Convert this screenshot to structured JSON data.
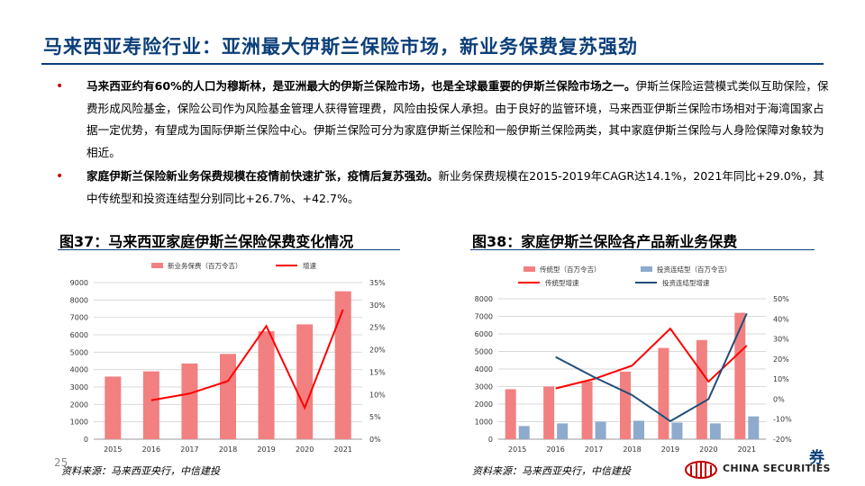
{
  "title": "马来西亚寿险行业：亚洲最大伊斯兰保险市场，新业务保费复苏强劲",
  "bullets": [
    {
      "bold": "马来西亚约有60%的人口为穆斯林，是亚洲最大的伊斯兰保险市场，也是全球最重要的伊斯兰保险市场之一。",
      "text": "伊斯兰保险运营模式类似互助保险，保费形成风险基金，保险公司作为风险基金管理人获得管理费，风险由投保人承担。由于良好的监管环境，马来西亚伊斯兰保险市场相对于海湾国家占据一定优势，有望成为国际伊斯兰保险中心。伊斯兰保险可分为家庭伊斯兰保险和一般伊斯兰保险两类，其中家庭伊斯兰保险与人身险保障对象较为相近。"
    },
    {
      "bold": "家庭伊斯兰保险新业务保费规模在疫情前快速扩张，疫情后复苏强劲。",
      "text": "新业务保费规模在2015-2019年CAGR达14.1%，2021年同比+29.0%，其中传统型和投资连结型分别同比+26.7%、+42.7%。"
    }
  ],
  "fig1": {
    "title": "图37：马来西亚家庭伊斯兰保险保费变化情况",
    "source": "资料来源：马来西亚央行，中信建投"
  },
  "fig2": {
    "title": "图38：家庭伊斯兰保险各产品新业务保费",
    "source": "资料来源：马来西亚央行，中信建投"
  },
  "page_number": "25",
  "logo": {
    "text": "CHINA SECURITIES",
    "char": "券"
  },
  "colors": {
    "bar_red": "#f28080",
    "line_red": "#ff0000",
    "bar_blue": "#8eaacc",
    "line_blue": "#1f4e79",
    "title_blue": "#0b3f7a"
  },
  "chart_data": [
    {
      "type": "bar",
      "categories": [
        "2015",
        "2016",
        "2017",
        "2018",
        "2019",
        "2020",
        "2021"
      ],
      "series": [
        {
          "name": "新业务保费（百万令吉）",
          "kind": "bar",
          "axis": "left",
          "values": [
            3600,
            3900,
            4350,
            4900,
            6200,
            6600,
            8500
          ]
        },
        {
          "name": "增速",
          "kind": "line",
          "axis": "right",
          "values": [
            null,
            8.7,
            10.2,
            13.0,
            25.3,
            7.0,
            29.0
          ]
        }
      ],
      "left_ticks": [
        "0",
        "1000",
        "2000",
        "3000",
        "4000",
        "5000",
        "6000",
        "7000",
        "8000",
        "9000"
      ],
      "right_ticks": [
        "0%",
        "5%",
        "10%",
        "15%",
        "20%",
        "25%",
        "30%",
        "35%"
      ],
      "ylim_left": [
        0,
        9000
      ],
      "ylim_right": [
        0,
        35
      ],
      "legend": "top"
    },
    {
      "type": "bar",
      "categories": [
        "2015",
        "2016",
        "2017",
        "2018",
        "2019",
        "2020",
        "2021"
      ],
      "series": [
        {
          "name": "传统型（百万令吉）",
          "kind": "bar",
          "axis": "left",
          "values": [
            2850,
            3000,
            3300,
            3850,
            5200,
            5650,
            7200
          ]
        },
        {
          "name": "投资连结型（百万令吉）",
          "kind": "bar",
          "axis": "left",
          "values": [
            750,
            900,
            1000,
            1050,
            950,
            900,
            1300
          ]
        },
        {
          "name": "传统型增速",
          "kind": "line",
          "axis": "right",
          "values": [
            null,
            5.3,
            10.0,
            16.7,
            35.1,
            8.7,
            26.7
          ]
        },
        {
          "name": "投资连结型增速",
          "kind": "line",
          "axis": "right",
          "values": [
            null,
            21.0,
            11.0,
            2.0,
            -11.0,
            0.0,
            42.7
          ]
        }
      ],
      "left_ticks": [
        "0",
        "1000",
        "2000",
        "3000",
        "4000",
        "5000",
        "6000",
        "7000",
        "8000"
      ],
      "right_ticks": [
        "-20%",
        "-10%",
        "0%",
        "10%",
        "20%",
        "30%",
        "40%",
        "50%"
      ],
      "ylim_left": [
        0,
        8000
      ],
      "ylim_right": [
        -20,
        50
      ],
      "legend": "top"
    }
  ]
}
